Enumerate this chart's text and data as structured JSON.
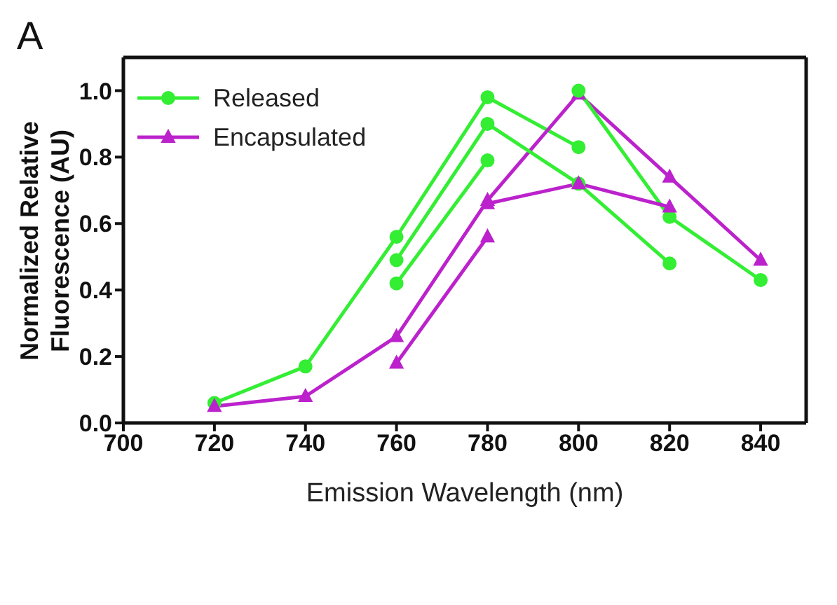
{
  "chart_data": {
    "type": "line",
    "title": "A",
    "xlabel": "Emission Wavelength (nm)",
    "ylabel": "Normalized Relative Fluorescence (AU)",
    "xlim": [
      700,
      850
    ],
    "xticks": [
      700,
      720,
      740,
      760,
      780,
      800,
      820,
      840
    ],
    "ylim": [
      0,
      1.1
    ],
    "yticks": [
      {
        "value": 0,
        "label": "0.0"
      },
      {
        "value": 0.2,
        "label": "0.2"
      },
      {
        "value": 0.4,
        "label": "0.4"
      },
      {
        "value": 0.6,
        "label": "0.6"
      },
      {
        "value": 0.8,
        "label": "0.8"
      },
      {
        "value": 1,
        "label": "1.0"
      }
    ],
    "grid": false,
    "legend": "top left",
    "line_style": "solid",
    "series": [
      {
        "name": "Released",
        "color": "#33ee33",
        "marker": "circle",
        "x": [
          720,
          740,
          760,
          780,
          800
        ],
        "values": [
          0.06,
          0.17,
          0.56,
          0.98,
          0.83
        ]
      },
      {
        "name": "Encapsulated",
        "color": "#bb22cc",
        "marker": "triangle",
        "x": [
          720,
          740,
          760,
          780,
          800,
          820,
          840
        ],
        "values": [
          0.05,
          0.08,
          0.26,
          0.67,
          0.99,
          0.74,
          0.49
        ]
      },
      {
        "color": "#33ee33",
        "marker": "circle",
        "x": [
          760,
          780,
          800,
          820
        ],
        "values": [
          0.49,
          0.9,
          0.72,
          0.48
        ]
      },
      {
        "color": "#33ee33",
        "marker": "circle",
        "x": [
          760,
          780
        ],
        "values": [
          0.42,
          0.79
        ]
      },
      {
        "color": "#33ee33",
        "marker": "circle",
        "x": [
          800,
          820,
          840
        ],
        "values": [
          1.0,
          0.62,
          0.43
        ]
      },
      {
        "color": "#bb22cc",
        "marker": "triangle",
        "x": [
          780,
          800,
          820
        ],
        "values": [
          0.66,
          0.72,
          0.65
        ]
      },
      {
        "color": "#bb22cc",
        "marker": "triangle",
        "x": [
          760,
          780
        ],
        "values": [
          0.18,
          0.56
        ]
      }
    ]
  }
}
